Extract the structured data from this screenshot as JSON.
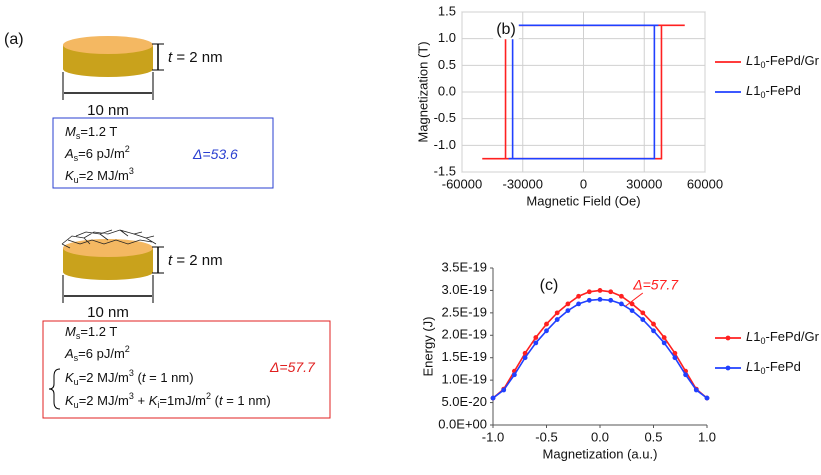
{
  "panel_a": {
    "label": "(a)",
    "disk1": {
      "thickness": [
        "t",
        " = 2 nm"
      ],
      "width": "10 nm"
    },
    "box1": {
      "lines": [
        [
          "M",
          "s",
          "=1.2 T"
        ],
        [
          "A",
          "s",
          "=6 pJ/m",
          "2"
        ],
        [
          "K",
          "u",
          "=2 MJ/m",
          "3"
        ]
      ],
      "delta": [
        "Δ",
        "=53.6"
      ]
    },
    "disk2": {
      "thickness": [
        "t",
        " = 2 nm"
      ],
      "width": "10 nm"
    },
    "box2": {
      "lines": [
        [
          "M",
          "s",
          "=1.2 T"
        ],
        [
          "A",
          "s",
          "=6 pJ/m",
          "2"
        ],
        [
          "K",
          "u",
          "=2 MJ/m",
          "3",
          " (",
          "t",
          " = 1 nm)"
        ],
        [
          "K",
          "u",
          "=2 MJ/m",
          "3",
          " + ",
          "K",
          "i",
          "=1mJ/m",
          "2",
          " (",
          "t",
          " = 1 nm)"
        ]
      ],
      "delta": [
        "Δ",
        "=57.7"
      ]
    }
  },
  "chart_data": [
    {
      "type": "line",
      "title": "(b)",
      "x_label": "Magnetic Field (Oe)",
      "y_label": "Magnetization (T)",
      "xlim": [
        -60000,
        60000
      ],
      "xticks": [
        -60000,
        -30000,
        0,
        30000,
        60000
      ],
      "ylim": [
        -1.5,
        1.5
      ],
      "yticks": [
        {
          "value": -1.5,
          "label": "-1.5"
        },
        {
          "value": -1,
          "label": "-1.0"
        },
        {
          "value": -0.5,
          "label": "-0.5"
        },
        {
          "value": 0,
          "label": "0.0"
        },
        {
          "value": 0.5,
          "label": "0.5"
        },
        {
          "value": 1,
          "label": "1.0"
        },
        {
          "value": 1.5,
          "label": "1.5"
        }
      ],
      "grid": true,
      "legend": "right",
      "markers": false,
      "series": [
        {
          "name": "L10-FePd/Gr",
          "color": "#ff2020",
          "x": [
            -50000,
            38500,
            38500,
            50000,
            -38500,
            -38500,
            -50000
          ],
          "values": [
            -1.25,
            -1.25,
            1.25,
            1.25,
            1.25,
            -1.25,
            -1.25
          ]
        },
        {
          "name": "L10-FePd",
          "color": "#2040ff",
          "x": [
            -37000,
            35000,
            35000,
            37000,
            -35000,
            -35000,
            -37000
          ],
          "values": [
            -1.25,
            -1.25,
            1.25,
            1.25,
            1.25,
            -1.25,
            -1.25
          ]
        }
      ]
    },
    {
      "type": "line",
      "title": "(c)",
      "x_label": "Magnetization (a.u.)",
      "y_label": "Energy (J)",
      "annotation": "Δ=57.7",
      "xlim": [
        -1,
        1
      ],
      "xticks": [
        {
          "value": -1,
          "label": "-1.0"
        },
        {
          "value": -0.5,
          "label": "-0.5"
        },
        {
          "value": 0,
          "label": "0.0"
        },
        {
          "value": 0.5,
          "label": "0.5"
        },
        {
          "value": 1,
          "label": "1.0"
        }
      ],
      "ylim": [
        0,
        3.5e-19
      ],
      "yticks": [
        {
          "value": 0,
          "label": "0.0E+00"
        },
        {
          "value": 5e-20,
          "label": "5.0E-20"
        },
        {
          "value": 1e-19,
          "label": "1.0E-19"
        },
        {
          "value": 1.5e-19,
          "label": "1.5E-19"
        },
        {
          "value": 2e-19,
          "label": "2.0E-19"
        },
        {
          "value": 2.5e-19,
          "label": "2.5E-19"
        },
        {
          "value": 3e-19,
          "label": "3.0E-19"
        },
        {
          "value": 3.5e-19,
          "label": "3.5E-19"
        }
      ],
      "grid": false,
      "legend": "right",
      "markers": true,
      "x": [
        -1,
        -0.9,
        -0.8,
        -0.7,
        -0.6,
        -0.5,
        -0.4,
        -0.3,
        -0.2,
        -0.1,
        0,
        0.1,
        0.2,
        0.3,
        0.4,
        0.5,
        0.6,
        0.7,
        0.8,
        0.9,
        1
      ],
      "series": [
        {
          "name": "L10-FePd/Gr",
          "color": "#ff2020",
          "values": [
            6e-20,
            8e-20,
            1.2e-19,
            1.6e-19,
            1.95e-19,
            2.25e-19,
            2.5e-19,
            2.7e-19,
            2.87e-19,
            2.97e-19,
            3e-19,
            2.97e-19,
            2.87e-19,
            2.7e-19,
            2.5e-19,
            2.25e-19,
            1.95e-19,
            1.6e-19,
            1.2e-19,
            8e-20,
            6e-20
          ]
        },
        {
          "name": "L10-FePd",
          "color": "#2040ff",
          "values": [
            6e-20,
            7.8e-20,
            1.12e-19,
            1.5e-19,
            1.83e-19,
            2.1e-19,
            2.35e-19,
            2.55e-19,
            2.7e-19,
            2.78e-19,
            2.8e-19,
            2.78e-19,
            2.7e-19,
            2.55e-19,
            2.35e-19,
            2.1e-19,
            1.83e-19,
            1.5e-19,
            1.12e-19,
            7.8e-20,
            6e-20
          ]
        }
      ]
    }
  ]
}
